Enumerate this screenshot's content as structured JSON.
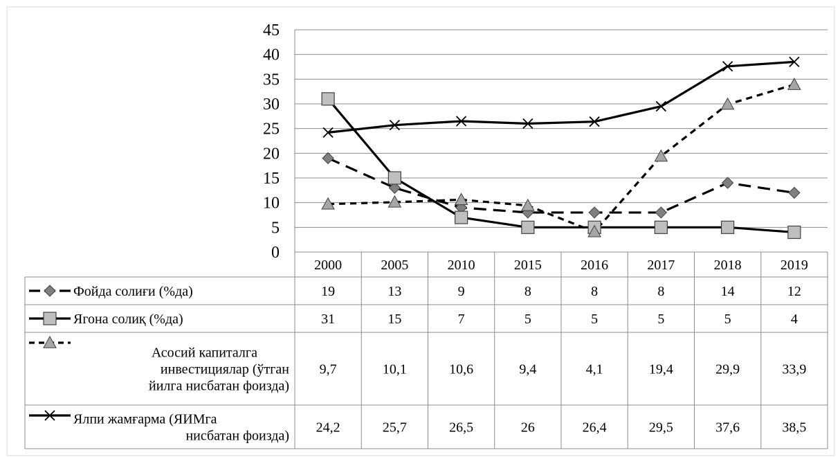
{
  "chart_data": {
    "type": "line",
    "title": "",
    "xlabel": "",
    "ylabel": "",
    "ylim": [
      0,
      45
    ],
    "yticks": [
      0,
      5,
      10,
      15,
      20,
      25,
      30,
      35,
      40,
      45
    ],
    "grid": true,
    "legend": "data-table-below",
    "categories": [
      "2000",
      "2005",
      "2010",
      "2015",
      "2016",
      "2017",
      "2018",
      "2019"
    ],
    "series": [
      {
        "name": "Фойда солиғи (%да)",
        "name_lines": [
          "Фойда солиғи (%да)"
        ],
        "values": [
          19,
          13,
          9,
          8,
          8,
          8,
          14,
          12
        ],
        "labels": [
          "19",
          "13",
          "9",
          "8",
          "8",
          "8",
          "14",
          "12"
        ],
        "marker": "diamond",
        "line_style": "long-dash",
        "color": "#000000",
        "marker_color": "#808080"
      },
      {
        "name": "Ягона солиқ (%да)",
        "name_lines": [
          "Ягона солиқ (%да)"
        ],
        "values": [
          31,
          15,
          7,
          5,
          5,
          5,
          5,
          4
        ],
        "labels": [
          "31",
          "15",
          "7",
          "5",
          "5",
          "5",
          "5",
          "4"
        ],
        "marker": "square",
        "line_style": "solid",
        "color": "#000000",
        "marker_color": "#bfbfbf"
      },
      {
        "name": "Асосий капиталга инвестициялар (ўтган йилга нисбатан фоизда)",
        "name_lines": [
          "Асосий капиталга",
          "инвестициялар (ўтган",
          "йилга нисбатан фоизда)"
        ],
        "values": [
          9.7,
          10.1,
          10.6,
          9.4,
          4.1,
          19.4,
          29.9,
          33.9
        ],
        "labels": [
          "9,7",
          "10,1",
          "10,6",
          "9,4",
          "4,1",
          "19,4",
          "29,9",
          "33,9"
        ],
        "marker": "triangle",
        "line_style": "short-dash",
        "color": "#000000",
        "marker_color": "#a6a6a6"
      },
      {
        "name": "Ялпи жамғарма (ЯИМга нисбатан фоизда)",
        "name_lines": [
          "Ялпи жамғарма (ЯИМга",
          "нисбатан фоизда)"
        ],
        "values": [
          24.2,
          25.7,
          26.5,
          26,
          26.4,
          29.5,
          37.6,
          38.5
        ],
        "labels": [
          "24,2",
          "25,7",
          "26,5",
          "26",
          "26,4",
          "29,5",
          "37,6",
          "38,5"
        ],
        "marker": "cross",
        "line_style": "solid",
        "color": "#000000",
        "marker_color": "#000000"
      }
    ]
  }
}
